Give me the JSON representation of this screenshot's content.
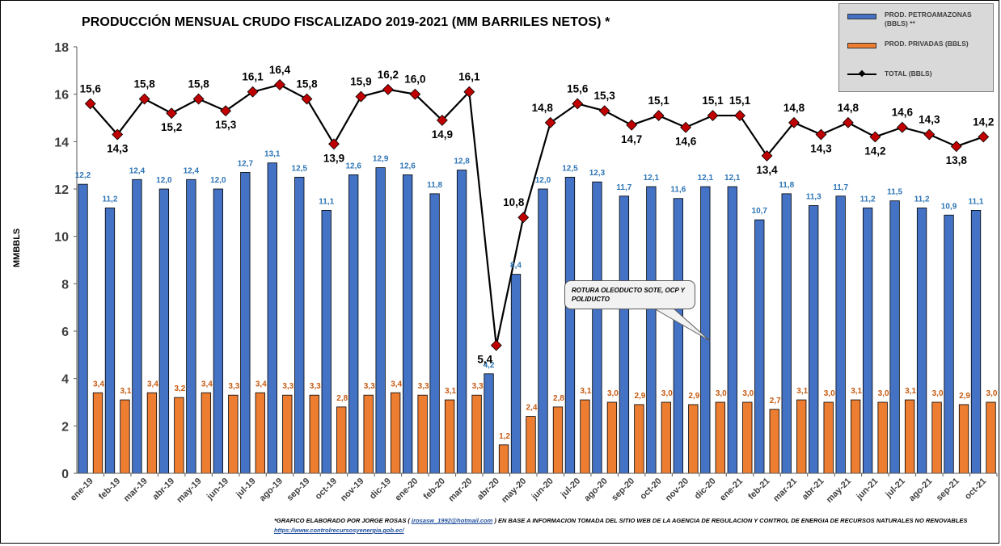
{
  "chart_data": {
    "type": "bar",
    "title": "PRODUCCIÓN MENSUAL CRUDO FISCALIZADO 2019-2021 (MM BARRILES NETOS) *",
    "xlabel": "",
    "ylabel": "MMBBLS",
    "ylim": [
      0,
      18
    ],
    "yticks": [
      "0",
      "2",
      "4",
      "6",
      "8",
      "10",
      "12",
      "14",
      "16",
      "18"
    ],
    "categories": [
      "ene-19",
      "feb-19",
      "mar-19",
      "abr-19",
      "may-19",
      "jun-19",
      "jul-19",
      "ago-19",
      "sep-19",
      "oct-19",
      "nov-19",
      "dic-19",
      "ene-20",
      "feb-20",
      "mar-20",
      "abr-20",
      "may-20",
      "jun-20",
      "jul-20",
      "ago-20",
      "sep-20",
      "oct-20",
      "nov-20",
      "dic-20",
      "ene-21",
      "feb-21",
      "mar-21",
      "abr-21",
      "may-21",
      "jun-21",
      "jul-21",
      "ago-21",
      "sep-21",
      "oct-21"
    ],
    "series": [
      {
        "name": "PROD. PETROAMAZONAS (BBLS) **",
        "kind": "bar",
        "color": "#4472c4",
        "values": [
          12.2,
          11.2,
          12.4,
          12.0,
          12.4,
          12.0,
          12.7,
          13.1,
          12.5,
          11.1,
          12.6,
          12.9,
          12.6,
          11.8,
          12.8,
          4.2,
          8.4,
          12.0,
          12.5,
          12.3,
          11.7,
          12.1,
          11.6,
          12.1,
          12.1,
          10.7,
          11.8,
          11.3,
          11.7,
          11.2,
          11.5,
          11.2,
          10.9,
          11.1
        ],
        "labels": [
          "12,2",
          "11,2",
          "12,4",
          "12,0",
          "12,4",
          "12,0",
          "12,7",
          "13,1",
          "12,5",
          "11,1",
          "12,6",
          "12,9",
          "12,6",
          "11,8",
          "12,8",
          "4,2",
          "8,4",
          "12,0",
          "12,5",
          "12,3",
          "11,7",
          "12,1",
          "11,6",
          "12,1",
          "12,1",
          "10,7",
          "11,8",
          "11,3",
          "11,7",
          "11,2",
          "11,5",
          "11,2",
          "10,9",
          "11,1"
        ]
      },
      {
        "name": "PROD. PRIVADAS (BBLS)",
        "kind": "bar",
        "color": "#ed7d31",
        "values": [
          3.4,
          3.1,
          3.4,
          3.2,
          3.4,
          3.3,
          3.4,
          3.3,
          3.3,
          2.8,
          3.3,
          3.4,
          3.3,
          3.1,
          3.3,
          1.2,
          2.4,
          2.8,
          3.1,
          3.0,
          2.9,
          3.0,
          2.9,
          3.0,
          3.0,
          2.7,
          3.1,
          3.0,
          3.1,
          3.0,
          3.1,
          3.0,
          2.9,
          3.0
        ],
        "labels": [
          "3,4",
          "3,1",
          "3,4",
          "3,2",
          "3,4",
          "3,3",
          "3,4",
          "3,3",
          "3,3",
          "2,8",
          "3,3",
          "3,4",
          "3,3",
          "3,1",
          "3,3",
          "1,2",
          "2,4",
          "2,8",
          "3,1",
          "3,0",
          "2,9",
          "3,0",
          "2,9",
          "3,0",
          "3,0",
          "2,7",
          "3,1",
          "3,0",
          "3,1",
          "3,0",
          "3,1",
          "3,0",
          "2,9",
          "3,0"
        ]
      },
      {
        "name": "TOTAL (BBLS)",
        "kind": "line",
        "color": "#000000",
        "marker_color": "#c00000",
        "values": [
          15.6,
          14.3,
          15.8,
          15.2,
          15.8,
          15.3,
          16.1,
          16.4,
          15.8,
          13.9,
          15.9,
          16.2,
          16.0,
          14.9,
          16.1,
          5.4,
          10.8,
          14.8,
          15.6,
          15.3,
          14.7,
          15.1,
          14.6,
          15.1,
          15.1,
          13.4,
          14.8,
          14.3,
          14.8,
          14.2,
          14.6,
          14.3,
          13.8,
          14.2
        ],
        "labels": [
          "15,6",
          "14,3",
          "15,8",
          "15,2",
          "15,8",
          "15,3",
          "16,1",
          "16,4",
          "15,8",
          "13,9",
          "15,9",
          "16,2",
          "16,0",
          "14,9",
          "16,1",
          "5,4",
          "10,8",
          "14,8",
          "15,6",
          "15,3",
          "14,7",
          "15,1",
          "14,6",
          "15,1",
          "15,1",
          "13,4",
          "14,8",
          "14,3",
          "14,8",
          "14,2",
          "14,6",
          "14,3",
          "13,8",
          "14,2"
        ]
      }
    ],
    "annotation": "ROTURA OLEODUCTO SOTE, OCP Y POLIDUCTO",
    "legend_position": "top-right",
    "grid": false
  },
  "footnote": {
    "prefix": "*GRAFICO ELABORADO POR  JORGE ROSAS ( ",
    "email": "jrosasw_1992@hotmail.com",
    "suffix": " ) EN BASE A INFORMACION  TOMADA DEL SITIO WEB DE LA AGENCIA DE REGULACION Y CONTROL DE ENERGIA DE RECURSOS NATURALES NO RENOVABLES",
    "url": "https://www.controlrecursosyenergia.gob.ec/"
  }
}
